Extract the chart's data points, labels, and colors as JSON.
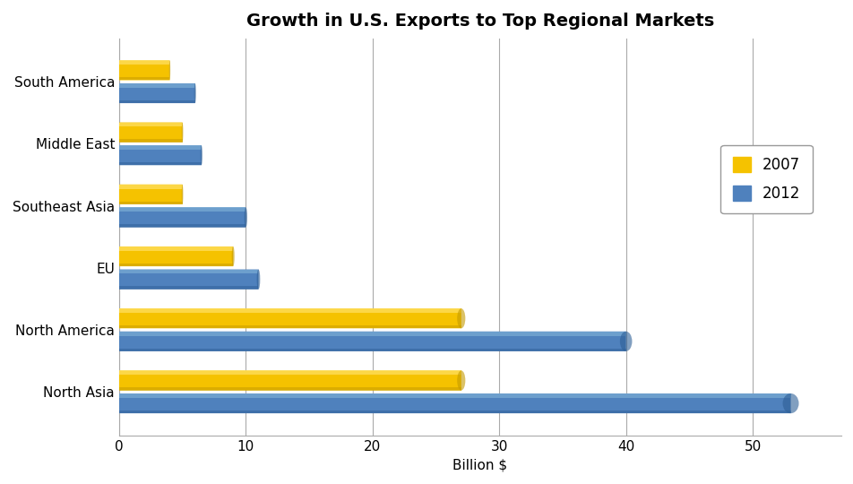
{
  "title": "Growth in U.S. Exports to Top Regional Markets",
  "categories": [
    "North Asia",
    "North America",
    "EU",
    "Southeast Asia",
    "Middle East",
    "South America"
  ],
  "values_2007": [
    27,
    27,
    9,
    5,
    5,
    4
  ],
  "values_2012": [
    53,
    40,
    11,
    10,
    6.5,
    6
  ],
  "color_2007": "#F5C200",
  "color_2007_dark": "#C49A00",
  "color_2007_light": "#FFE066",
  "color_2012": "#4F81BD",
  "color_2012_dark": "#2E5F96",
  "color_2012_light": "#7AADD4",
  "xlabel": "Billion $",
  "xlim": [
    0,
    57
  ],
  "xticks": [
    0,
    10,
    20,
    30,
    40,
    50
  ],
  "legend_labels": [
    "2007",
    "2012"
  ],
  "background_color": "#FFFFFF",
  "plot_bg_color": "#FFFFFF",
  "title_fontsize": 14,
  "label_fontsize": 11,
  "tick_fontsize": 11,
  "bar_height": 0.32,
  "bar_gap": 0.05
}
